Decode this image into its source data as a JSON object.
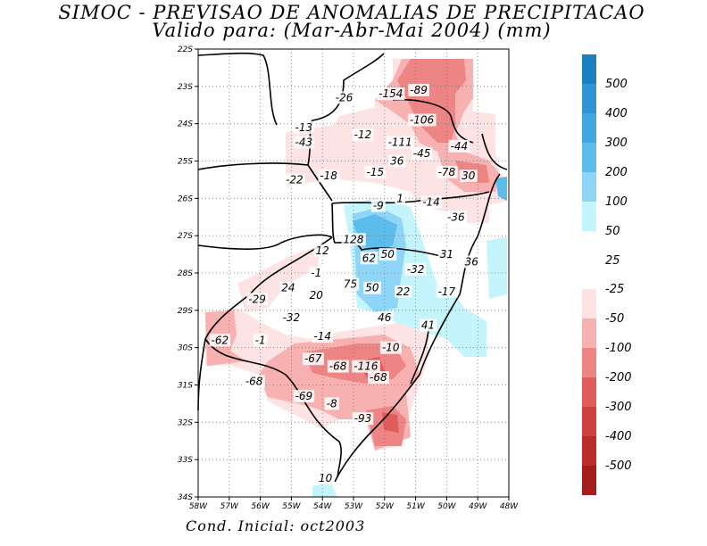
{
  "title": {
    "line1": "SIMOC - PREVISAO DE ANOMALIAS DE PRECIPITACAO",
    "line2": "Valido para: (Mar-Abr-Mai 2004) (mm)"
  },
  "footer": "Cond. Inicial: oct2003",
  "axes": {
    "lat_labels": [
      "22S",
      "23S",
      "24S",
      "25S",
      "26S",
      "27S",
      "28S",
      "29S",
      "30S",
      "31S",
      "32S",
      "33S",
      "34S"
    ],
    "lon_labels": [
      "58W",
      "57W",
      "56W",
      "55W",
      "54W",
      "53W",
      "52W",
      "51W",
      "50W",
      "49W",
      "48W"
    ],
    "lat_range": [
      -34,
      -22
    ],
    "lon_range": [
      -58,
      -48
    ]
  },
  "legend": {
    "positive": [
      {
        "label": "500",
        "color": "#1c7fbf"
      },
      {
        "label": "400",
        "color": "#2e95d3"
      },
      {
        "label": "300",
        "color": "#40a8e0"
      },
      {
        "label": "200",
        "color": "#5cbcec"
      },
      {
        "label": "100",
        "color": "#8fd5f8"
      },
      {
        "label": "50",
        "color": "#c4f5fc"
      },
      {
        "label": "25",
        "color": "#ffffff"
      }
    ],
    "negative": [
      {
        "label": "-25",
        "color": "#fde3e3"
      },
      {
        "label": "-50",
        "color": "#f7b1b1"
      },
      {
        "label": "-100",
        "color": "#ee8585"
      },
      {
        "label": "-200",
        "color": "#e05d5d"
      },
      {
        "label": "-300",
        "color": "#cf4040"
      },
      {
        "label": "-400",
        "color": "#bb2c2c"
      },
      {
        "label": "-500",
        "color": "#a51c1c"
      }
    ]
  },
  "contour_labels": [
    {
      "text": "-26",
      "lon": -53.3,
      "lat": -23.3
    },
    {
      "text": "-154",
      "lon": -51.8,
      "lat": -23.2
    },
    {
      "text": "-89",
      "lon": -50.9,
      "lat": -23.1
    },
    {
      "text": "-106",
      "lon": -50.8,
      "lat": -23.9
    },
    {
      "text": "-13",
      "lon": -54.6,
      "lat": -24.1
    },
    {
      "text": "-43",
      "lon": -54.6,
      "lat": -24.5
    },
    {
      "text": "-12",
      "lon": -52.7,
      "lat": -24.3
    },
    {
      "text": "-111",
      "lon": -51.5,
      "lat": -24.5
    },
    {
      "text": "-45",
      "lon": -50.8,
      "lat": -24.8
    },
    {
      "text": "-44",
      "lon": -49.6,
      "lat": -24.6
    },
    {
      "text": "36",
      "lon": -51.6,
      "lat": -25.0
    },
    {
      "text": "-15",
      "lon": -52.3,
      "lat": -25.3
    },
    {
      "text": "-18",
      "lon": -53.8,
      "lat": -25.4
    },
    {
      "text": "-22",
      "lon": -54.9,
      "lat": -25.5
    },
    {
      "text": "-78",
      "lon": -50.0,
      "lat": -25.3
    },
    {
      "text": "30",
      "lon": -49.3,
      "lat": -25.4
    },
    {
      "text": "-9",
      "lon": -52.2,
      "lat": -26.2
    },
    {
      "text": "1",
      "lon": -51.5,
      "lat": -26.0
    },
    {
      "text": "-14",
      "lon": -50.5,
      "lat": -26.1
    },
    {
      "text": "-36",
      "lon": -49.7,
      "lat": -26.5
    },
    {
      "text": "128",
      "lon": -53.0,
      "lat": -27.1
    },
    {
      "text": "12",
      "lon": -54.0,
      "lat": -27.4
    },
    {
      "text": "62",
      "lon": -52.5,
      "lat": -27.6
    },
    {
      "text": "50",
      "lon": -51.9,
      "lat": -27.5
    },
    {
      "text": "31",
      "lon": -50.0,
      "lat": -27.5
    },
    {
      "text": "36",
      "lon": -49.2,
      "lat": -27.7
    },
    {
      "text": "-1",
      "lon": -54.2,
      "lat": -28.0
    },
    {
      "text": "-32",
      "lon": -51.0,
      "lat": -27.9
    },
    {
      "text": "24",
      "lon": -55.1,
      "lat": -28.4
    },
    {
      "text": "75",
      "lon": -53.1,
      "lat": -28.3
    },
    {
      "text": "50",
      "lon": -52.4,
      "lat": -28.4
    },
    {
      "text": "22",
      "lon": -51.4,
      "lat": -28.5
    },
    {
      "text": "-17",
      "lon": -50.0,
      "lat": -28.5
    },
    {
      "text": "20",
      "lon": -54.2,
      "lat": -28.6
    },
    {
      "text": "-29",
      "lon": -56.1,
      "lat": -28.7
    },
    {
      "text": "-32",
      "lon": -55.0,
      "lat": -29.2
    },
    {
      "text": "46",
      "lon": -52.0,
      "lat": -29.2
    },
    {
      "text": "41",
      "lon": -50.6,
      "lat": -29.4
    },
    {
      "text": "-14",
      "lon": -54.0,
      "lat": -29.7
    },
    {
      "text": "-62",
      "lon": -57.3,
      "lat": -29.8
    },
    {
      "text": "-1",
      "lon": -56.0,
      "lat": -29.8
    },
    {
      "text": "-10",
      "lon": -51.8,
      "lat": -30.0
    },
    {
      "text": "-67",
      "lon": -54.3,
      "lat": -30.3
    },
    {
      "text": "-68",
      "lon": -53.5,
      "lat": -30.5
    },
    {
      "text": "-116",
      "lon": -52.6,
      "lat": -30.5
    },
    {
      "text": "-68",
      "lon": -56.2,
      "lat": -30.9
    },
    {
      "text": "-68",
      "lon": -52.2,
      "lat": -30.8
    },
    {
      "text": "-69",
      "lon": -54.6,
      "lat": -31.3
    },
    {
      "text": "-8",
      "lon": -53.7,
      "lat": -31.5
    },
    {
      "text": "-93",
      "lon": -52.7,
      "lat": -31.9
    },
    {
      "text": "10",
      "lon": -53.9,
      "lat": -33.5
    }
  ]
}
